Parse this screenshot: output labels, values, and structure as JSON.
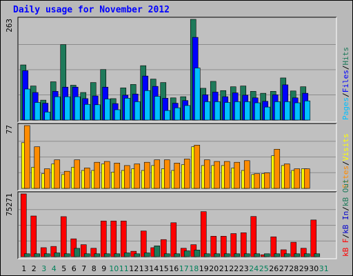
{
  "chart_data": {
    "type": "bar",
    "title": "Daily usage for November 2012",
    "days": [
      "1",
      "2",
      "3",
      "4",
      "5",
      "6",
      "7",
      "8",
      "9",
      "10",
      "11",
      "12",
      "13",
      "14",
      "15",
      "16",
      "17",
      "18",
      "19",
      "20",
      "21",
      "22",
      "23",
      "24",
      "25",
      "26",
      "27",
      "28",
      "29",
      "30",
      "31"
    ],
    "weekend_days": [
      "3",
      "4",
      "10",
      "11",
      "17",
      "18",
      "24",
      "25",
      "31"
    ],
    "colors": {
      "hits": "#1e7a5a",
      "files": "#0000ff",
      "pages": "#00c0ff",
      "visits": "#ffff00",
      "sites": "#ff8c00",
      "kb_in": "#0000cc",
      "kb_out": "#1e7a5a",
      "kb_f": "#ff0000",
      "weekday_label": "#000000",
      "weekend_label": "#00805a",
      "grid": "#8c8c8c",
      "panel_bg": "#c0c0c0"
    },
    "panels": [
      {
        "name": "hits-files-pages",
        "ymax_label": "263",
        "ymax": 263,
        "legend": [
          {
            "text": "Pages",
            "color": "#00c0ff"
          },
          {
            "text": "/",
            "color": "#000000"
          },
          {
            "text": "Files",
            "color": "#0000ff"
          },
          {
            "text": "/",
            "color": "#000000"
          },
          {
            "text": "Hits",
            "color": "#1e7a5a"
          }
        ],
        "series": [
          {
            "name": "Hits",
            "values": [
              144,
              89,
              52,
              100,
              197,
              91,
              72,
              98,
              132,
              56,
              84,
              93,
              142,
              107,
              98,
              58,
              61,
              263,
              83,
              101,
              77,
              87,
              89,
              75,
              70,
              75,
              110,
              76,
              87,
              0,
              0
            ]
          },
          {
            "name": "Files",
            "values": [
              129,
              72,
              44,
              75,
              86,
              86,
              56,
              63,
              86,
              43,
              65,
              68,
              115,
              88,
              57,
              44,
              51,
              216,
              66,
              73,
              61,
              71,
              65,
              58,
              49,
              66,
              92,
              58,
              70,
              0,
              0
            ]
          },
          {
            "name": "Pages",
            "values": [
              81,
              46,
              21,
              61,
              61,
              61,
              41,
              40,
              55,
              27,
              57,
              48,
              77,
              62,
              25,
              32,
              38,
              136,
              48,
              48,
              46,
              48,
              48,
              45,
              34,
              48,
              48,
              45,
              50,
              0,
              0
            ]
          }
        ]
      },
      {
        "name": "visits-sites",
        "ymax_label": "77",
        "ymax": 77,
        "legend": [
          {
            "text": "Sites",
            "color": "#ff8c00"
          },
          {
            "text": "/",
            "color": "#000000"
          },
          {
            "text": "Visits",
            "color": "#ffff00"
          }
        ],
        "series": [
          {
            "name": "Visits",
            "values": [
              56,
              26,
              18,
              30,
              17,
              26,
              22,
              22,
              30,
              20,
              22,
              24,
              22,
              28,
              24,
              22,
              29,
              51,
              28,
              28,
              28,
              25,
              22,
              17,
              18,
              40,
              28,
              22,
              24,
              0,
              0
            ]
          },
          {
            "name": "Sites",
            "values": [
              77,
              51,
              24,
              35,
              21,
              35,
              25,
              32,
              33,
              31,
              28,
              30,
              32,
              35,
              35,
              31,
              36,
              53,
              35,
              33,
              33,
              32,
              34,
              18,
              19,
              48,
              30,
              24,
              24,
              0,
              0
            ]
          }
        ]
      },
      {
        "name": "kbytes",
        "ymax_label": "75271",
        "ymax": 75271,
        "legend": [
          {
            "text": "kB F",
            "color": "#ff0000"
          },
          {
            "text": "/",
            "color": "#000000"
          },
          {
            "text": "kB In",
            "color": "#0000cc"
          },
          {
            "text": "/",
            "color": "#000000"
          },
          {
            "text": "kB Out",
            "color": "#1e7a5a"
          }
        ],
        "series": [
          {
            "name": "kB F",
            "values": [
              75271,
              48800,
              10800,
              12300,
              48000,
              21400,
              14400,
              10100,
              42800,
              42800,
              42800,
              6500,
              30800,
              10800,
              20500,
              40700,
              10100,
              14400,
              54000,
              24500,
              24500,
              27700,
              28700,
              48200,
              2300,
              23800,
              8300,
              17300,
              10100,
              44000,
              0
            ]
          },
          {
            "name": "kB Out",
            "values": [
              3500,
              3500,
              3500,
              4500,
              3500,
              10000,
              3500,
              3500,
              3500,
              3500,
              4500,
              3500,
              4500,
              13000,
              3500,
              3500,
              7000,
              8000,
              3500,
              3500,
              3500,
              3500,
              3500,
              3500,
              3500,
              3500,
              3500,
              3500,
              3500,
              3500,
              0
            ]
          }
        ]
      }
    ]
  }
}
